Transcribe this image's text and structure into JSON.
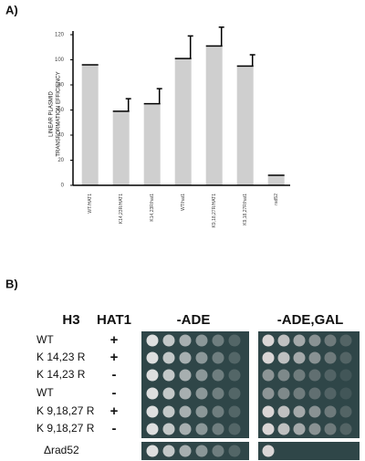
{
  "chart_data": {
    "type": "bar",
    "panel_label": "A)",
    "ylabel": [
      "LINEAR PLASMID",
      "TRANSFORMATION EFFICIENCY"
    ],
    "categories": [
      "WT/HAT1",
      "K14,23R/HAT1",
      "K14,23R/hat1",
      "WT/hat1",
      "K9,18,27R/HAT1",
      "K9,18,27R/hat1",
      "rad52"
    ],
    "values": [
      96,
      59,
      65,
      101,
      111,
      95,
      8
    ],
    "errors": [
      0,
      10,
      12,
      18,
      15,
      9,
      0
    ],
    "color": "#cfcfcf",
    "ylim": [
      0,
      120
    ],
    "yticks": [
      0,
      20,
      40,
      60,
      80,
      100,
      120
    ]
  },
  "panel_b": {
    "label": "B)",
    "headers": [
      "H3",
      "HAT1",
      "-ADE",
      "-ADE,GAL"
    ],
    "rows": [
      [
        "WT",
        "+"
      ],
      [
        "K 14,23 R",
        "+"
      ],
      [
        "K 14,23 R",
        "-"
      ],
      [
        "WT",
        "-"
      ],
      [
        "K 9,18,27 R",
        "+"
      ],
      [
        "K 9,18,27 R",
        "-"
      ],
      [
        "Δrad52",
        ""
      ]
    ]
  }
}
